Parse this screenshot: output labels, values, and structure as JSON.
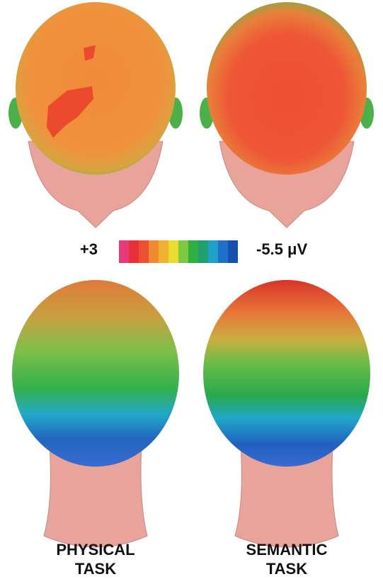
{
  "scale": {
    "max_label": "+3",
    "min_label": "-5.5 μV"
  },
  "panels": [
    {
      "label_lines": [
        "PHYSICAL",
        "TASK"
      ]
    },
    {
      "label_lines": [
        "SEMANTIC",
        "TASK"
      ]
    }
  ]
}
